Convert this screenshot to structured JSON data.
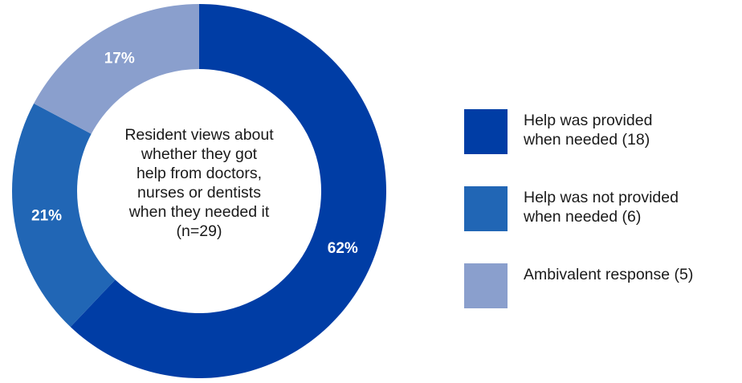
{
  "chart_data": {
    "type": "pie",
    "title": "Resident views about\nwhether they got\nhelp from doctors,\nnurses or dentists\nwhen they needed it\n(n=29)",
    "slices": [
      {
        "name": "Help was provided\nwhen needed (18)",
        "value": 18,
        "percent_label": "62%",
        "color": "#003da5"
      },
      {
        "name": "Help was not provided\nwhen needed (6)",
        "value": 6,
        "percent_label": "21%",
        "color": "#2166b5"
      },
      {
        "name": "Ambivalent response (5)",
        "value": 5,
        "percent_label": "17%",
        "color": "#8a9fcd"
      }
    ],
    "legend_position": "right",
    "donut": true
  }
}
